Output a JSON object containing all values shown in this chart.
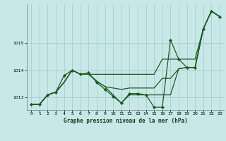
{
  "title": "Graphe pression niveau de la mer (hPa)",
  "bg_color": "#c8e8e8",
  "grid_color": "#a0c8c8",
  "line_color": "#1a5c1a",
  "marker_color": "#1a5c1a",
  "xlim": [
    -0.5,
    23.5
  ],
  "ylim": [
    1012.55,
    1016.4
  ],
  "yticks": [
    1013,
    1014,
    1015
  ],
  "xticks": [
    0,
    1,
    2,
    3,
    4,
    5,
    6,
    7,
    8,
    9,
    10,
    11,
    12,
    13,
    14,
    15,
    16,
    17,
    18,
    19,
    20,
    21,
    22,
    23
  ],
  "series": [
    {
      "y": [
        1012.75,
        1012.75,
        1013.1,
        1013.2,
        1013.55,
        1014.0,
        1013.85,
        1013.85,
        1013.85,
        1013.85,
        1013.85,
        1013.85,
        1013.85,
        1013.85,
        1013.85,
        1013.85,
        1014.4,
        1014.4,
        1014.4,
        1014.4,
        1014.4,
        1015.5,
        1016.15,
        1015.95
      ],
      "marker": false,
      "lw": 0.9
    },
    {
      "y": [
        1012.75,
        1012.75,
        1013.1,
        1013.2,
        1013.55,
        1014.0,
        1013.85,
        1013.85,
        1013.6,
        1013.4,
        1013.35,
        1013.3,
        1013.35,
        1013.35,
        1013.35,
        1013.35,
        1013.7,
        1013.7,
        1014.05,
        1014.1,
        1014.1,
        1015.5,
        1016.15,
        1015.95
      ],
      "marker": false,
      "lw": 0.9
    },
    {
      "y": [
        1012.75,
        1012.75,
        1013.1,
        1013.2,
        1013.55,
        1014.0,
        1013.85,
        1013.85,
        1013.6,
        1013.4,
        1013.1,
        1012.8,
        1013.1,
        1013.1,
        1013.1,
        1013.1,
        1013.1,
        1013.1,
        1014.05,
        1014.1,
        1014.1,
        1015.5,
        1016.15,
        1015.95
      ],
      "marker": false,
      "lw": 0.9
    },
    {
      "y": [
        1012.75,
        1012.75,
        1013.1,
        1013.2,
        1013.8,
        1014.0,
        1013.85,
        1013.9,
        1013.55,
        1013.3,
        1013.05,
        1012.8,
        1013.15,
        1013.15,
        1013.1,
        1012.65,
        1012.65,
        1015.1,
        1014.4,
        1014.1,
        1014.1,
        1015.5,
        1016.15,
        1015.95
      ],
      "marker": true,
      "lw": 0.9
    }
  ]
}
